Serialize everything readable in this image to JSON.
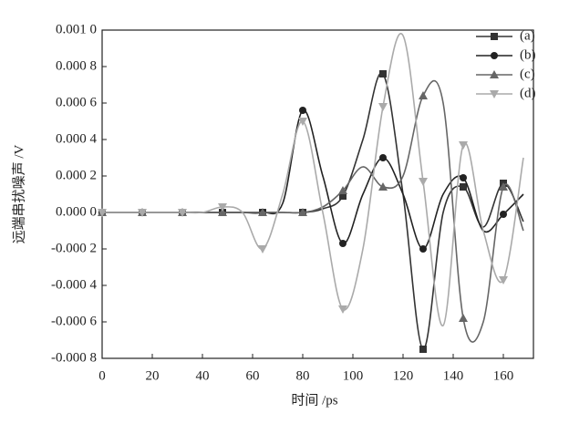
{
  "chart_data": {
    "type": "line",
    "x_label": "时间 /ps",
    "y_label": "远端串扰噪声 /V",
    "x": [
      0,
      8,
      16,
      24,
      32,
      40,
      48,
      56,
      64,
      72,
      80,
      88,
      96,
      104,
      112,
      120,
      128,
      136,
      144,
      152,
      160,
      168
    ],
    "xlim": [
      0,
      172
    ],
    "xticks": [
      0,
      20,
      40,
      60,
      80,
      100,
      120,
      140,
      160
    ],
    "ylim": [
      -0.0008,
      0.001
    ],
    "yticks": [
      {
        "value": 0.001,
        "label": "0.001 0"
      },
      {
        "value": 0.0008,
        "label": "0.000 8"
      },
      {
        "value": 0.0006,
        "label": "0.000 6"
      },
      {
        "value": 0.0004,
        "label": "0.000 4"
      },
      {
        "value": 0.0002,
        "label": "0.000 2"
      },
      {
        "value": 0,
        "label": "0.000 0"
      },
      {
        "value": -0.0002,
        "label": "-0.000 2"
      },
      {
        "value": -0.0004,
        "label": "-0.000 4"
      },
      {
        "value": -0.0006,
        "label": "-0.000 6"
      },
      {
        "value": -0.0008,
        "label": "-0.000 8"
      }
    ],
    "legend_position": "upper right",
    "series": [
      {
        "name": "(a)",
        "color": "#333333",
        "marker": "square",
        "values": [
          0,
          0,
          0,
          0,
          0,
          0,
          0,
          0,
          0,
          0,
          0,
          2e-05,
          9e-05,
          0.0004,
          0.00076,
          0.0001,
          -0.00075,
          0,
          0.00014,
          -8e-05,
          0.00016,
          -5e-05
        ]
      },
      {
        "name": "(b)",
        "color": "#222222",
        "marker": "circle",
        "values": [
          0,
          0,
          0,
          0,
          0,
          0,
          0,
          0,
          0,
          5e-05,
          0.00056,
          0.0002,
          -0.00017,
          0.0001,
          0.0003,
          0.0001,
          -0.0002,
          0.0001,
          0.00019,
          -0.0001,
          -1e-05,
          0.0001
        ]
      },
      {
        "name": "(c)",
        "color": "#666666",
        "marker": "triangle-up",
        "values": [
          0,
          0,
          0,
          0,
          0,
          0,
          0,
          0,
          0,
          0,
          0,
          3e-05,
          0.00012,
          0.00025,
          0.00014,
          0.0002,
          0.00064,
          0.0006,
          -0.00058,
          -0.0006,
          0.00014,
          -0.0001
        ]
      },
      {
        "name": "(d)",
        "color": "#aaaaaa",
        "marker": "triangle-down",
        "values": [
          0,
          0,
          0,
          0,
          0,
          0,
          3e-05,
          0,
          -0.0002,
          0.0001,
          0.0005,
          0,
          -0.00053,
          -0.0002,
          0.00058,
          0.00097,
          0.00017,
          -0.00062,
          0.00037,
          -0.0001,
          -0.00037,
          0.0003
        ]
      }
    ]
  }
}
